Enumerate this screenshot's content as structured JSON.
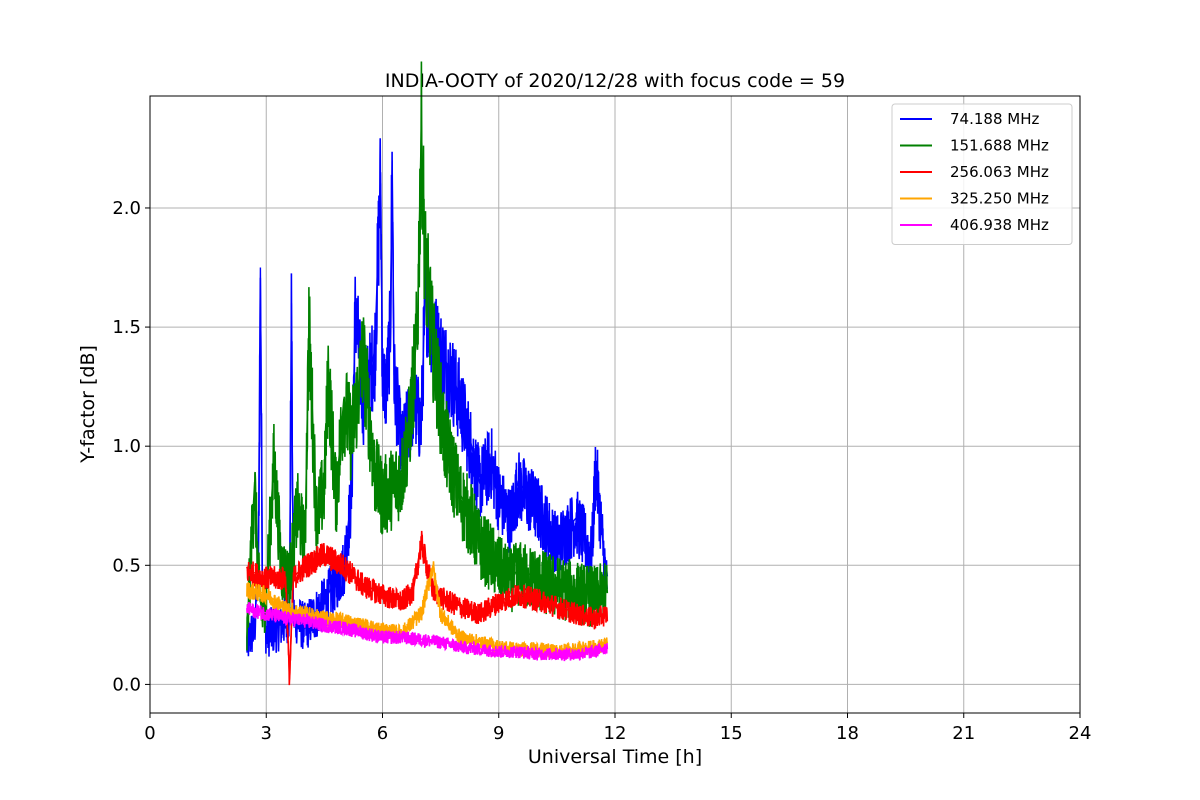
{
  "chart_data": {
    "type": "line",
    "title": "INDIA-OOTY of 2020/12/28 with focus code = 59",
    "xlabel": "Universal Time [h]",
    "ylabel": "Y-factor [dB]",
    "xlim": [
      0,
      24
    ],
    "ylim": [
      -0.12,
      2.47
    ],
    "xticks": [
      0,
      3,
      6,
      9,
      12,
      15,
      18,
      21,
      24
    ],
    "xtick_labels": [
      "0",
      "3",
      "6",
      "9",
      "12",
      "15",
      "18",
      "21",
      "24"
    ],
    "yticks": [
      0.0,
      0.5,
      1.0,
      1.5,
      2.0
    ],
    "ytick_labels": [
      "0.0",
      "0.5",
      "1.0",
      "1.5",
      "2.0"
    ],
    "grid": true,
    "legend_position": "top-right",
    "series": [
      {
        "name": " 74.188 MHz",
        "color": "#0000ff",
        "x": [
          2.5,
          2.7,
          2.8,
          2.85,
          2.9,
          3.0,
          3.3,
          3.6,
          3.65,
          3.7,
          3.8,
          4.0,
          4.5,
          5.0,
          5.2,
          5.3,
          5.5,
          5.8,
          5.95,
          6.0,
          6.1,
          6.2,
          6.25,
          6.3,
          6.5,
          6.8,
          7.0,
          7.1,
          7.3,
          7.5,
          7.8,
          8.0,
          8.3,
          8.5,
          8.8,
          9.0,
          9.3,
          9.5,
          10.0,
          10.5,
          11.0,
          11.4,
          11.5,
          11.8
        ],
        "y": [
          0.18,
          0.25,
          0.55,
          1.75,
          0.45,
          0.22,
          0.25,
          0.3,
          1.6,
          0.3,
          0.28,
          0.25,
          0.35,
          0.5,
          0.8,
          1.6,
          1.2,
          1.4,
          2.15,
          1.3,
          1.25,
          1.5,
          2.2,
          1.3,
          1.0,
          1.2,
          1.1,
          1.65,
          1.5,
          1.4,
          1.3,
          1.2,
          1.0,
          0.85,
          0.95,
          0.8,
          0.7,
          0.85,
          0.75,
          0.6,
          0.7,
          0.55,
          0.93,
          0.4
        ]
      },
      {
        "name": "151.688 MHz",
        "color": "#008000",
        "x": [
          2.5,
          2.6,
          2.7,
          2.8,
          2.9,
          3.0,
          3.2,
          3.4,
          3.6,
          3.8,
          4.0,
          4.1,
          4.3,
          4.5,
          4.6,
          4.8,
          5.0,
          5.2,
          5.5,
          5.8,
          6.0,
          6.3,
          6.5,
          6.7,
          6.9,
          7.0,
          7.1,
          7.3,
          7.6,
          8.0,
          8.3,
          8.5,
          8.8,
          9.0,
          9.3,
          9.5,
          10.0,
          10.5,
          11.0,
          11.5,
          11.8
        ],
        "y": [
          0.2,
          0.55,
          0.85,
          0.45,
          0.3,
          0.4,
          0.95,
          0.5,
          0.45,
          0.75,
          0.6,
          1.52,
          0.7,
          0.85,
          1.32,
          0.8,
          1.2,
          1.05,
          1.4,
          0.9,
          0.8,
          0.85,
          0.9,
          1.1,
          1.5,
          2.35,
          1.8,
          1.45,
          1.05,
          0.8,
          0.7,
          0.6,
          0.55,
          0.5,
          0.45,
          0.48,
          0.45,
          0.42,
          0.4,
          0.38,
          0.4
        ]
      },
      {
        "name": "256.063 MHz",
        "color": "#ff0000",
        "x": [
          2.5,
          3.0,
          3.5,
          3.6,
          3.7,
          4.0,
          4.5,
          5.0,
          5.5,
          6.0,
          6.5,
          6.8,
          7.0,
          7.3,
          7.6,
          8.0,
          8.5,
          9.0,
          9.5,
          10.0,
          10.5,
          11.0,
          11.5,
          11.8
        ],
        "y": [
          0.48,
          0.45,
          0.45,
          0.02,
          0.45,
          0.5,
          0.55,
          0.5,
          0.42,
          0.38,
          0.35,
          0.4,
          0.6,
          0.4,
          0.36,
          0.33,
          0.3,
          0.35,
          0.38,
          0.36,
          0.33,
          0.3,
          0.28,
          0.3
        ]
      },
      {
        "name": "325.250 MHz",
        "color": "#ffa500",
        "x": [
          2.5,
          3.0,
          3.5,
          4.0,
          4.5,
          5.0,
          5.5,
          6.0,
          6.5,
          7.0,
          7.3,
          7.5,
          8.0,
          8.5,
          9.0,
          9.5,
          10.0,
          10.5,
          11.0,
          11.5,
          11.8
        ],
        "y": [
          0.4,
          0.38,
          0.32,
          0.3,
          0.28,
          0.27,
          0.25,
          0.23,
          0.22,
          0.3,
          0.5,
          0.3,
          0.2,
          0.18,
          0.16,
          0.15,
          0.15,
          0.14,
          0.15,
          0.16,
          0.17
        ]
      },
      {
        "name": "406.938 MHz",
        "color": "#ff00ff",
        "x": [
          2.5,
          3.0,
          3.5,
          4.0,
          4.5,
          5.0,
          5.5,
          6.0,
          6.5,
          7.0,
          7.5,
          8.0,
          8.5,
          9.0,
          9.5,
          10.0,
          10.5,
          11.0,
          11.5,
          11.8
        ],
        "y": [
          0.32,
          0.3,
          0.28,
          0.27,
          0.25,
          0.24,
          0.22,
          0.2,
          0.2,
          0.19,
          0.18,
          0.16,
          0.15,
          0.14,
          0.14,
          0.13,
          0.13,
          0.13,
          0.14,
          0.16
        ]
      }
    ]
  }
}
